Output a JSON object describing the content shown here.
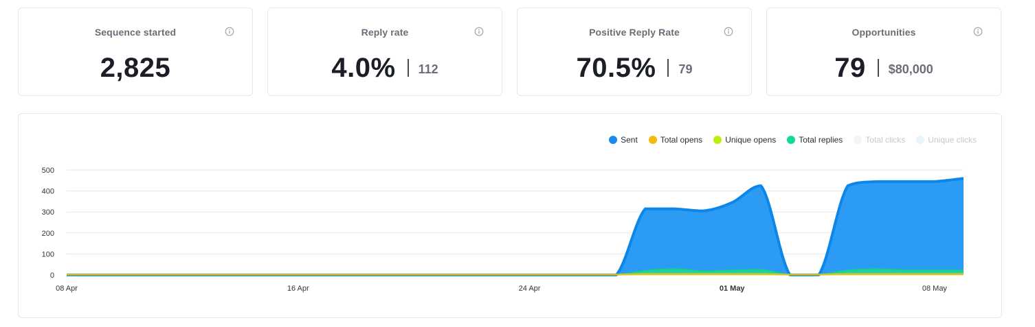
{
  "stats": [
    {
      "title": "Sequence started",
      "value": "2,825",
      "secondary": ""
    },
    {
      "title": "Reply rate",
      "value": "4.0%",
      "secondary": "112"
    },
    {
      "title": "Positive Reply Rate",
      "value": "70.5%",
      "secondary": "79"
    },
    {
      "title": "Opportunities",
      "value": "79",
      "secondary": "$80,000"
    }
  ],
  "legend": [
    {
      "label": "Sent",
      "color": "#1a8cf0",
      "muted": false
    },
    {
      "label": "Total opens",
      "color": "#f2b90f",
      "muted": false
    },
    {
      "label": "Unique opens",
      "color": "#b9f00a",
      "muted": false
    },
    {
      "label": "Total replies",
      "color": "#12dc92",
      "muted": false
    },
    {
      "label": "Total clicks",
      "color": "#eef6f8",
      "muted": true
    },
    {
      "label": "Unique clicks",
      "color": "#e9f3f8",
      "muted": true
    }
  ],
  "chart_data": {
    "type": "area",
    "x_ticks": [
      {
        "label": "08 Apr",
        "bold": false
      },
      {
        "label": "16 Apr",
        "bold": false
      },
      {
        "label": "24 Apr",
        "bold": false
      },
      {
        "label": "01 May",
        "bold": true
      },
      {
        "label": "08 May",
        "bold": false
      }
    ],
    "y_ticks": [
      "500",
      "400",
      "300",
      "200",
      "100",
      "0"
    ],
    "ylim": [
      0,
      500
    ],
    "x": [
      "08 Apr",
      "09 Apr",
      "10 Apr",
      "11 Apr",
      "12 Apr",
      "13 Apr",
      "14 Apr",
      "15 Apr",
      "16 Apr",
      "17 Apr",
      "18 Apr",
      "19 Apr",
      "20 Apr",
      "21 Apr",
      "22 Apr",
      "23 Apr",
      "24 Apr",
      "25 Apr",
      "26 Apr",
      "27 Apr",
      "28 Apr",
      "29 Apr",
      "30 Apr",
      "01 May",
      "02 May",
      "03 May",
      "04 May",
      "05 May",
      "06 May",
      "07 May",
      "08 May",
      "09 May"
    ],
    "series": [
      {
        "name": "Sent",
        "color": "#1a8cf0",
        "values": [
          0,
          0,
          0,
          0,
          0,
          0,
          0,
          0,
          0,
          0,
          0,
          0,
          0,
          0,
          0,
          0,
          0,
          0,
          0,
          0,
          315,
          315,
          305,
          345,
          425,
          0,
          0,
          425,
          445,
          445,
          445,
          460
        ]
      },
      {
        "name": "Total replies",
        "color": "#12dc92",
        "values": [
          0,
          0,
          0,
          0,
          0,
          0,
          0,
          0,
          0,
          0,
          0,
          0,
          0,
          0,
          0,
          0,
          0,
          0,
          0,
          0,
          20,
          28,
          18,
          22,
          25,
          0,
          0,
          22,
          28,
          22,
          22,
          22
        ]
      },
      {
        "name": "Unique opens",
        "color": "#b9f00a",
        "values": [
          2,
          2,
          2,
          2,
          2,
          2,
          2,
          2,
          2,
          2,
          2,
          2,
          2,
          2,
          2,
          2,
          2,
          2,
          2,
          2,
          5,
          5,
          5,
          5,
          5,
          2,
          2,
          5,
          5,
          5,
          5,
          5
        ]
      },
      {
        "name": "Total opens",
        "color": "#f2b90f",
        "values": [
          1,
          1,
          1,
          1,
          1,
          1,
          1,
          1,
          1,
          1,
          1,
          1,
          1,
          1,
          1,
          1,
          1,
          1,
          1,
          1,
          2,
          2,
          2,
          2,
          2,
          1,
          1,
          2,
          2,
          2,
          2,
          2
        ]
      }
    ]
  }
}
